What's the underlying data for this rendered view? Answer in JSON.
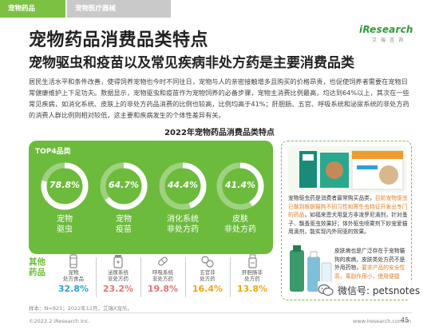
{
  "tabs": [
    {
      "label": "宠物药品",
      "active": true
    },
    {
      "label": "宠物医疗器械",
      "active": false
    }
  ],
  "logo": {
    "main": "iResearch",
    "sub": "艾瑞咨询"
  },
  "title": "宠物药品消费品类特点",
  "subtitle": "宠物驱虫和疫苗以及常见疾病非处方药是主要消费品类",
  "body": "居民生活水平和条件改善，使得饲养宠物也今时不同往日，宠物与人的亲密接触增多且购买的价格昂贵，也促使饲养者需要在宠物日常健康维护上下足功夫。数据显示，宠物驱虫和疫苗作为宠物饲养的必备步骤，宠物主消费比例最高，均达到64%以上，其次在一些常见疾病，如消化系统、皮肤上的非处方药品消费的比例也较高，比例均高于41%；肝胆肠、五官、呼吸系统和泌尿系统的非处方药的消费人群比例则相对较低，这主要和疾病发生的个体性差异有关。",
  "chart_title": "2022年宠物药品消费品类特点",
  "top4": {
    "label": "TOP4品类",
    "items": [
      {
        "value_label": "78.8%",
        "value": 78.8,
        "name_line1": "宠物",
        "name_line2": "驱虫"
      },
      {
        "value_label": "64.7%",
        "value": 64.7,
        "name_line1": "宠物",
        "name_line2": "疫苗"
      },
      {
        "value_label": "44.4%",
        "value": 44.4,
        "name_line1": "消化系统",
        "name_line2": "非处方药"
      },
      {
        "value_label": "41.4%",
        "value": 41.4,
        "name_line1": "皮肤",
        "name_line2": "非处方药"
      }
    ]
  },
  "others": {
    "label": "其他药品",
    "items": [
      {
        "name": "宠物\n处方食品",
        "value": "32.8%",
        "color": "#2e9fd8",
        "icon": "food-can-icon"
      },
      {
        "name": "泌尿系统\n非处方药",
        "value": "23.2%",
        "color": "#e8736f",
        "icon": "pill-bottle-icon"
      },
      {
        "name": "呼吸系统\n非处方药",
        "value": "19.8%",
        "color": "#e8736f",
        "icon": "capsule-icon"
      },
      {
        "name": "五官非\n处方药",
        "value": "16.4%",
        "color": "#f2a516",
        "icon": "tablets-icon"
      },
      {
        "name": "肝胆肠非\n处方药",
        "value": "13.8%",
        "color": "#f2a516",
        "icon": "medicine-bottle-icon"
      }
    ]
  },
  "right_panel": {
    "text1_pre": "宠物驱虫药是消费者最常购买品类，",
    "text1_hl": "目前宠物驱虫已做到根据猫狗不同习性和寄生虫特征开发出专门的药品",
    "text1_post": "，如福来恩犬用复方非泼罗尼滴剂，针对蚤子、飘蚤驱虫效果好；体外驱虫喷雾剂下妙宠爱猫用滴剂，能实现内外同驱的效果。",
    "text2_pre": "皮肤病也是广泛存在于宠物猫狗的疾病，皮肤类处方药不是外用药物，",
    "text2_hl": "要求产品的安全性高，毒副作用小，使用便捷等",
    "text2_post": "。"
  },
  "source": "样本：N=921；2022年12月，艾瑞X宠乐。",
  "copyright": "©2023.2 iResearch Inc.",
  "website": "www.iresearch.com.cn",
  "page_number": "45",
  "watermark": "微信号: petsnotes",
  "colors": {
    "green": "#6cbb3c",
    "tab_green": "#7dc142",
    "blue": "#2e9fd8",
    "red": "#e8736f",
    "orange": "#f2a516"
  }
}
